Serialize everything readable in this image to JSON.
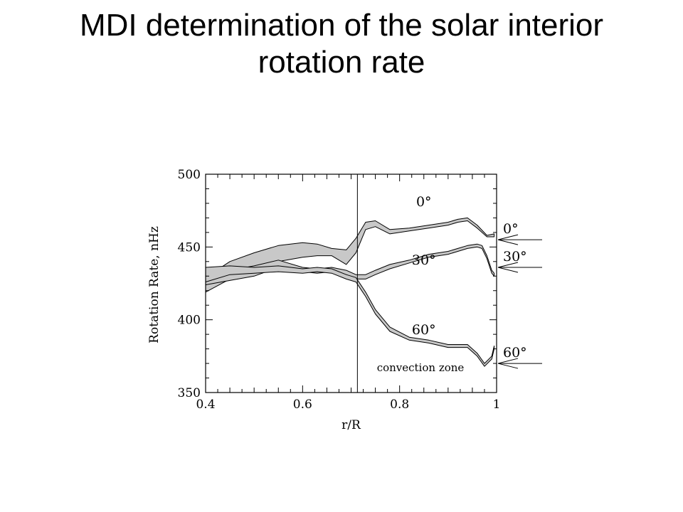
{
  "slide": {
    "title_line1": "MDI determination of the solar interior",
    "title_line2": "rotation rate"
  },
  "chart_data": {
    "type": "area",
    "xlabel": "r/R",
    "ylabel": "Rotation Rate, nHz",
    "xlim": [
      0.4,
      1.0
    ],
    "ylim": [
      350,
      500
    ],
    "x_ticks": [
      "0.4",
      "0.6",
      "0.8",
      "1"
    ],
    "x_tick_values": [
      0.4,
      0.6,
      0.8,
      1.0
    ],
    "y_ticks": [
      "500",
      "450",
      "400",
      "350"
    ],
    "y_tick_values": [
      500,
      450,
      400,
      350
    ],
    "grid": false,
    "convection_zone_boundary": 0.713,
    "convection_zone_label": "convection zone",
    "series": [
      {
        "name": "0°",
        "x": [
          0.4,
          0.45,
          0.5,
          0.55,
          0.6,
          0.63,
          0.66,
          0.69,
          0.71,
          0.73,
          0.75,
          0.78,
          0.82,
          0.86,
          0.9,
          0.92,
          0.94,
          0.96,
          0.98,
          0.995
        ],
        "lower": [
          419,
          428,
          435,
          440,
          443,
          444,
          444,
          438,
          446,
          462,
          464,
          459,
          461,
          463,
          465,
          467,
          468,
          463,
          457,
          457
        ],
        "upper": [
          429,
          440,
          446,
          451,
          453,
          452,
          449,
          448,
          456,
          467,
          468,
          462,
          463,
          465,
          467,
          469,
          470,
          465,
          458,
          459
        ]
      },
      {
        "name": "30°",
        "x": [
          0.4,
          0.45,
          0.5,
          0.55,
          0.6,
          0.63,
          0.66,
          0.69,
          0.71,
          0.73,
          0.75,
          0.78,
          0.82,
          0.86,
          0.9,
          0.92,
          0.94,
          0.96,
          0.97,
          0.98,
          0.99,
          0.995
        ],
        "lower": [
          424,
          427,
          430,
          436,
          433,
          432,
          433,
          431,
          428,
          428,
          431,
          435,
          439,
          443,
          445,
          447,
          449,
          450,
          449,
          442,
          432,
          430
        ],
        "upper": [
          433,
          434,
          437,
          441,
          436,
          435,
          436,
          434,
          431,
          431,
          434,
          438,
          441,
          445,
          447,
          449,
          451,
          452,
          451,
          444,
          434,
          432
        ]
      },
      {
        "name": "60°",
        "x": [
          0.4,
          0.45,
          0.5,
          0.55,
          0.6,
          0.63,
          0.66,
          0.69,
          0.71,
          0.73,
          0.75,
          0.78,
          0.82,
          0.86,
          0.9,
          0.92,
          0.94,
          0.96,
          0.975,
          0.99,
          0.995
        ],
        "lower": [
          426,
          431,
          432,
          433,
          432,
          433,
          432,
          428,
          426,
          416,
          404,
          392,
          386,
          384,
          381,
          381,
          381,
          375,
          368,
          373,
          380
        ],
        "upper": [
          436,
          437,
          436,
          437,
          435,
          436,
          435,
          431,
          429,
          419,
          407,
          395,
          388,
          386,
          383,
          383,
          383,
          377,
          370,
          375,
          382
        ]
      }
    ],
    "annotations": [
      {
        "text": "0°",
        "x": 0.85,
        "y": 478
      },
      {
        "text": "30°",
        "x": 0.85,
        "y": 438
      },
      {
        "text": "60°",
        "x": 0.85,
        "y": 390
      }
    ],
    "surface_markers": [
      {
        "label": "0°",
        "value": 455
      },
      {
        "label": "30°",
        "value": 436
      },
      {
        "label": "60°",
        "value": 370
      }
    ]
  }
}
